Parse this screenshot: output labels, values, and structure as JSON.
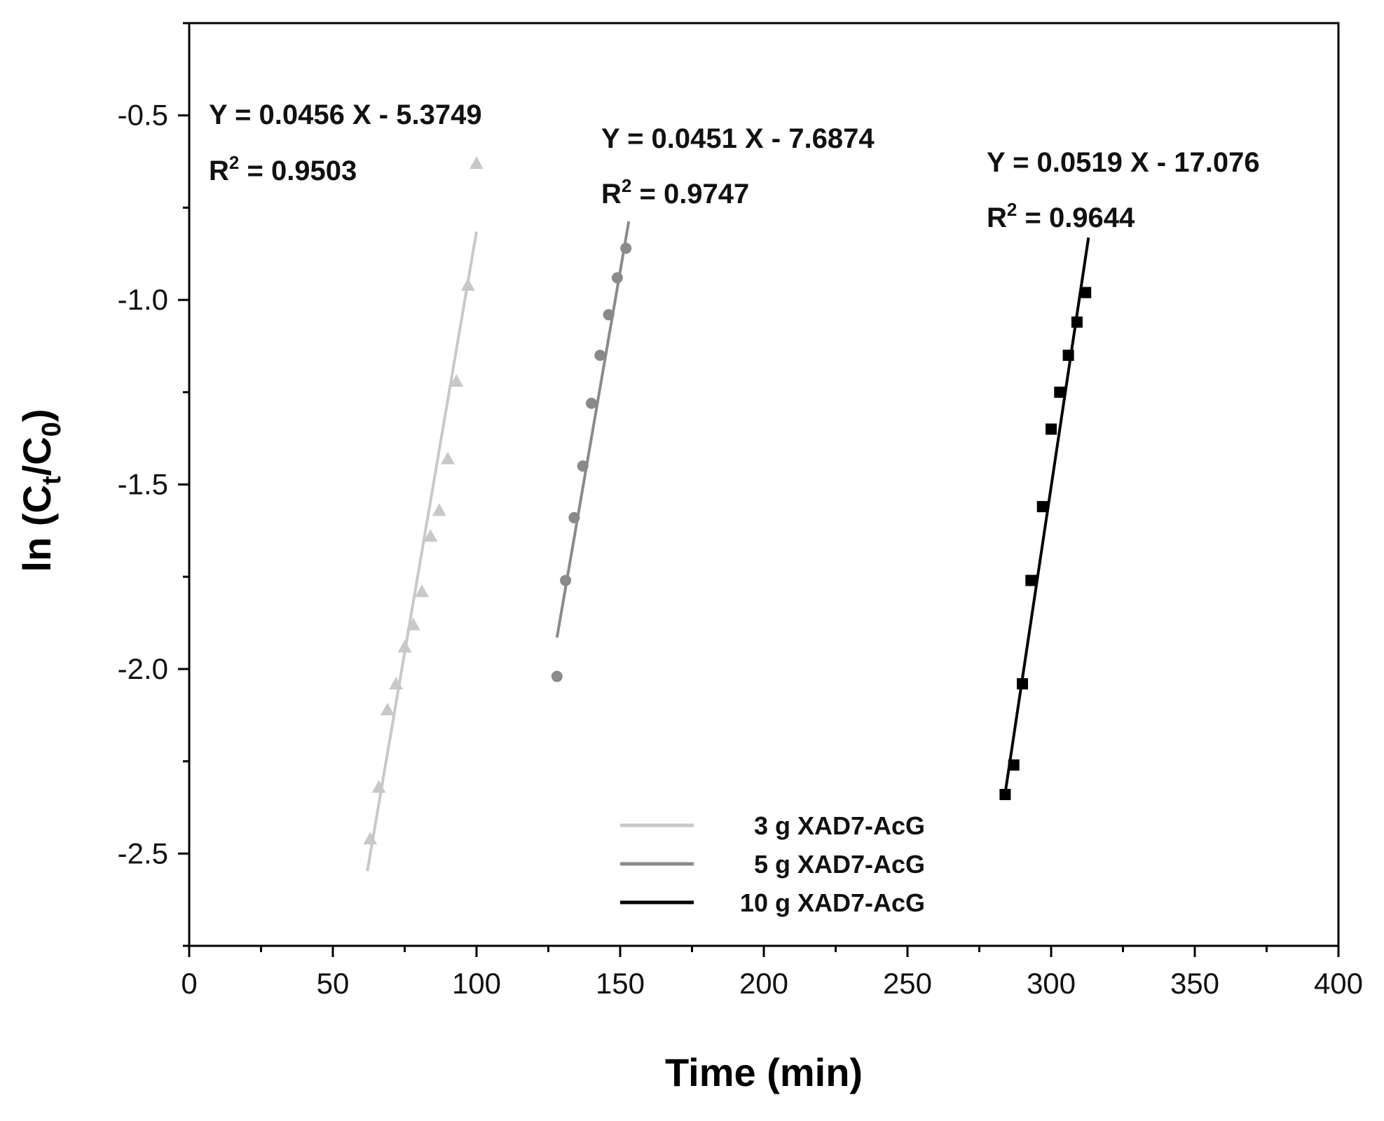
{
  "chart_data": {
    "type": "scatter",
    "xlabel": "Time (min)",
    "ylabel": {
      "main": "ln (C",
      "sub1": "t",
      "mid": "/C",
      "sub2": "0",
      "end": ")"
    },
    "xlim": [
      0,
      400
    ],
    "ylim": [
      -2.75,
      -0.25
    ],
    "xticks": [
      "0",
      "50",
      "100",
      "150",
      "200",
      "250",
      "300",
      "350",
      "400"
    ],
    "yticks": [
      "-0.5",
      "-1.0",
      "-1.5",
      "-2.0",
      "-2.5"
    ],
    "grid": false,
    "legend_position": "bottom-center",
    "series": [
      {
        "name": "3 g XAD7-AcG",
        "marker": "triangle",
        "color": "#c8c8c8",
        "points": [
          [
            63,
            -2.46
          ],
          [
            66,
            -2.32
          ],
          [
            69,
            -2.11
          ],
          [
            72,
            -2.04
          ],
          [
            75,
            -1.94
          ],
          [
            78,
            -1.88
          ],
          [
            81,
            -1.79
          ],
          [
            84,
            -1.64
          ],
          [
            87,
            -1.57
          ],
          [
            90,
            -1.43
          ],
          [
            93,
            -1.22
          ],
          [
            97,
            -0.96
          ],
          [
            100,
            -0.63
          ]
        ],
        "fit": {
          "slope": 0.0456,
          "intercept": -5.3749,
          "x_range": [
            62,
            100
          ]
        },
        "equation": "Y = 0.0456 X - 5.3749",
        "r2_prefix": "R",
        "r2_value": " = 0.9503"
      },
      {
        "name": "5 g XAD7-AcG",
        "marker": "circle",
        "color": "#8a8a8a",
        "points": [
          [
            128,
            -2.02
          ],
          [
            131,
            -1.76
          ],
          [
            134,
            -1.59
          ],
          [
            137,
            -1.45
          ],
          [
            140,
            -1.28
          ],
          [
            143,
            -1.15
          ],
          [
            146,
            -1.04
          ],
          [
            149,
            -0.94
          ],
          [
            152,
            -0.86
          ]
        ],
        "fit": {
          "slope": 0.0451,
          "intercept": -7.6874,
          "x_range": [
            128,
            153
          ]
        },
        "equation": "Y = 0.0451 X - 7.6874",
        "r2_prefix": "R",
        "r2_value": " = 0.9747"
      },
      {
        "name": "10 g XAD7-AcG",
        "marker": "square",
        "color": "#000000",
        "points": [
          [
            284,
            -2.34
          ],
          [
            287,
            -2.26
          ],
          [
            290,
            -2.04
          ],
          [
            293,
            -1.76
          ],
          [
            297,
            -1.56
          ],
          [
            300,
            -1.35
          ],
          [
            303,
            -1.25
          ],
          [
            306,
            -1.15
          ],
          [
            309,
            -1.06
          ],
          [
            312,
            -0.98
          ]
        ],
        "fit": {
          "slope": 0.0519,
          "intercept": -17.076,
          "x_range": [
            284,
            313
          ]
        },
        "equation": "Y = 0.0519 X - 17.076",
        "r2_prefix": "R",
        "r2_value": " = 0.9644"
      }
    ]
  }
}
